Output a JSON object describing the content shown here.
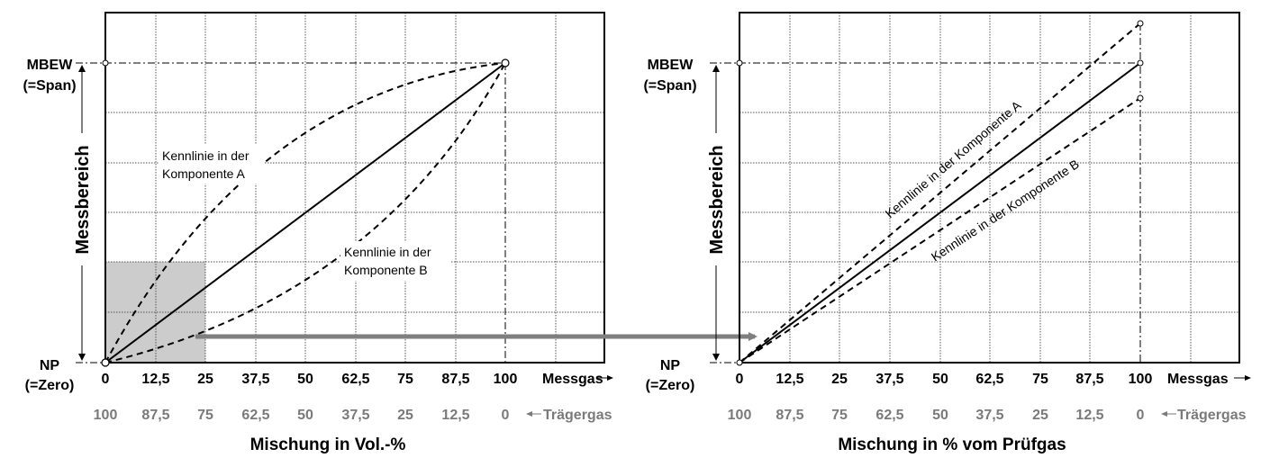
{
  "charts": [
    {
      "id": "left",
      "y_top_label_1": "MBEW",
      "y_top_label_2": "(=Span)",
      "y_bottom_label_1": "NP",
      "y_bottom_label_2": "(=Zero)",
      "y_axis_title": "Messbereich",
      "x_ticks_primary": [
        "0",
        "12,5",
        "25",
        "37,5",
        "50",
        "62,5",
        "75",
        "87,5",
        "100"
      ],
      "x_ticks_secondary": [
        "100",
        "87,5",
        "75",
        "62,5",
        "50",
        "37,5",
        "25",
        "12,5",
        "0"
      ],
      "x_primary_suffix": "Messgas",
      "x_secondary_suffix": "Trägergas",
      "x_title": "Mischung in Vol.-%",
      "label_a_1": "Kennlinie in der",
      "label_a_2": "Komponente A",
      "label_b_1": "Kennlinie in der",
      "label_b_2": "Komponente B"
    },
    {
      "id": "right",
      "y_top_label_1": "MBEW",
      "y_top_label_2": "(=Span)",
      "y_bottom_label_1": "NP",
      "y_bottom_label_2": "(=Zero)",
      "y_axis_title": "Messbereich",
      "x_ticks_primary": [
        "0",
        "12,5",
        "25",
        "37,5",
        "50",
        "62,5",
        "75",
        "87,5",
        "100"
      ],
      "x_ticks_secondary": [
        "100",
        "87,5",
        "75",
        "62,5",
        "50",
        "37,5",
        "25",
        "12,5",
        "0"
      ],
      "x_primary_suffix": "Messgas",
      "x_secondary_suffix": "Trägergas",
      "x_title": "Mischung in % vom Prüfgas",
      "label_a": "Kennlinie in der Komponente A",
      "label_b": "Kennlinie in der Komponente B"
    }
  ],
  "colors": {
    "grid": "#555555",
    "highlight": "#cccccc",
    "arrow": "#7f7f7f",
    "secondary_text": "#7a7a7a"
  },
  "icons": {
    "arrow": "right-arrow-icon",
    "left_arrow": "left-arrow-icon"
  }
}
